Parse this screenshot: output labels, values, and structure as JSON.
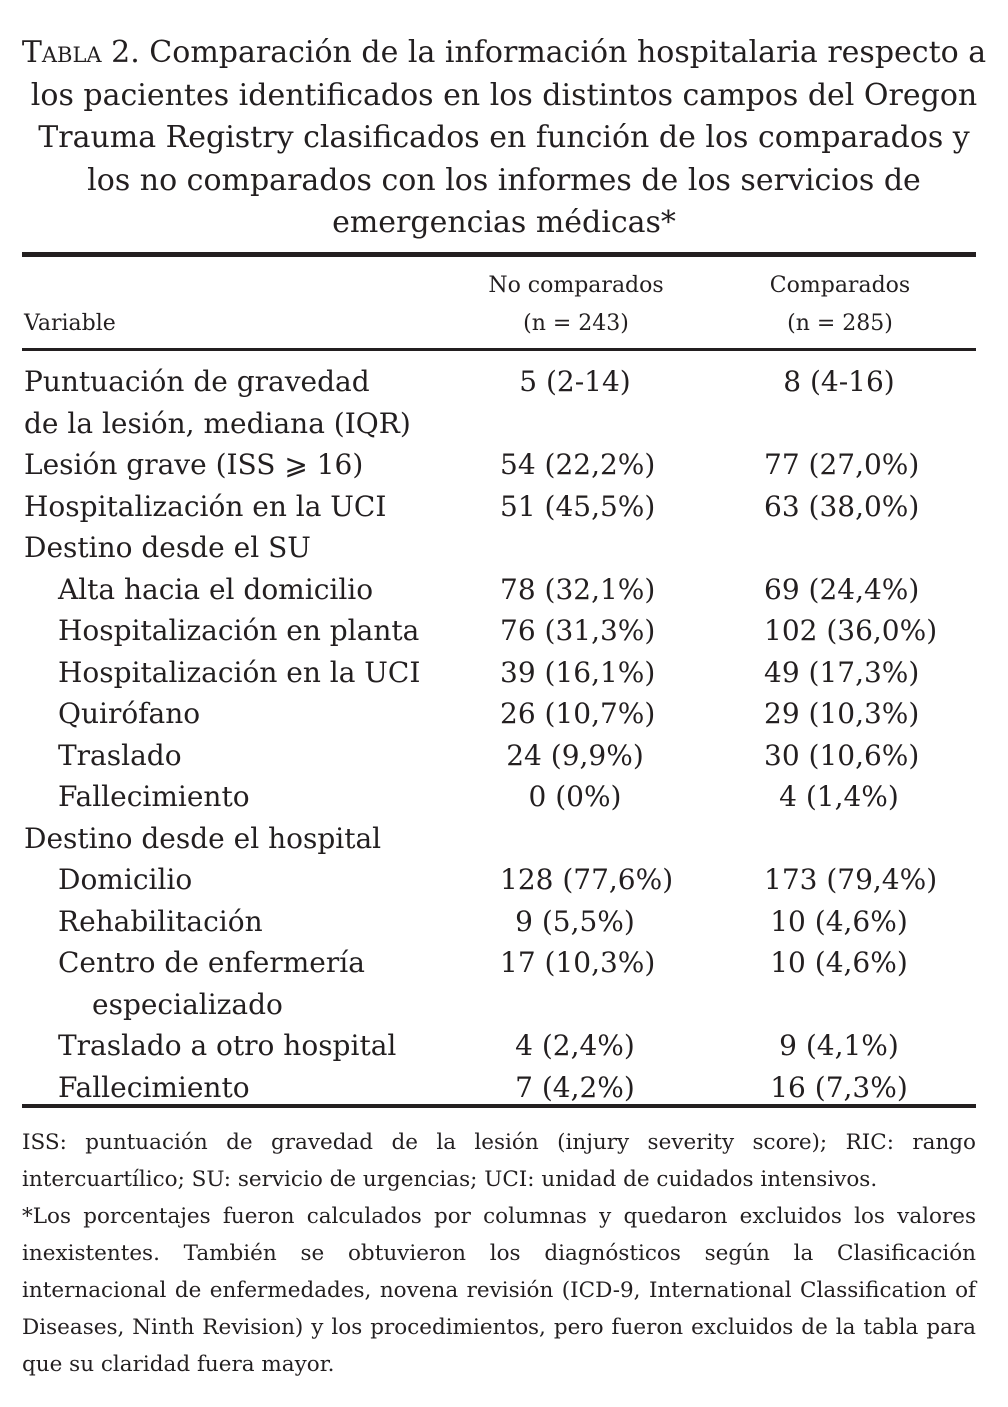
{
  "title": {
    "label": "Tabla 2.",
    "text": "Comparación de la información hospitalaria respecto a los pacientes identificados en los distintos campos del Oregon Trauma Registry clasificados en función de los comparados y los no comparados con los informes de los servicios de emergencias médicas*"
  },
  "header": {
    "variable": "Variable",
    "col1": "No comparados",
    "col1_n": "(n = 243)",
    "col2": "Comparados",
    "col2_n": "(n = 285)"
  },
  "rows": [
    {
      "label": "Puntuación de gravedad",
      "c1": "5 (2-14)",
      "c2": "8 (4-16)",
      "indent": 0
    },
    {
      "label": "de la lesión, mediana (IQR)",
      "c1": "",
      "c2": "",
      "indent": 0
    },
    {
      "label": "Lesión grave (ISS ⩾ 16)",
      "c1": "54 (22,2%)",
      "c2": "77 (27,0%)",
      "indent": 0
    },
    {
      "label": "Hospitalización en la UCI",
      "c1": "51 (45,5%)",
      "c2": "63 (38,0%)",
      "indent": 0
    },
    {
      "label": "Destino desde el SU",
      "c1": "",
      "c2": "",
      "indent": 0
    },
    {
      "label": "Alta hacia el domicilio",
      "c1": "78 (32,1%)",
      "c2": "69 (24,4%)",
      "indent": 1
    },
    {
      "label": "Hospitalización en planta",
      "c1": "76 (31,3%)",
      "c2": "102 (36,0%)",
      "indent": 1
    },
    {
      "label": "Hospitalización en la UCI",
      "c1": "39 (16,1%)",
      "c2": "49 (17,3%)",
      "indent": 1
    },
    {
      "label": "Quirófano",
      "c1": "26 (10,7%)",
      "c2": "29 (10,3%)",
      "indent": 1
    },
    {
      "label": "Traslado",
      "c1": "24 (9,9%)",
      "c2": "30 (10,6%)",
      "indent": 1
    },
    {
      "label": "Fallecimiento",
      "c1": "0 (0%)",
      "c2": "4 (1,4%)",
      "indent": 1
    },
    {
      "label": "Destino desde el hospital",
      "c1": "",
      "c2": "",
      "indent": 0
    },
    {
      "label": "Domicilio",
      "c1": "128 (77,6%)",
      "c2": "173 (79,4%)",
      "indent": 1
    },
    {
      "label": "Rehabilitación",
      "c1": "9 (5,5%)",
      "c2": "10 (4,6%)",
      "indent": 1
    },
    {
      "label": "Centro de enfermería",
      "c1": "17 (10,3%)",
      "c2": "10 (4,6%)",
      "indent": 1
    },
    {
      "label": "especializado",
      "c1": "",
      "c2": "",
      "indent": 2
    },
    {
      "label": "Traslado a otro hospital",
      "c1": "4 (2,4%)",
      "c2": "9 (4,1%)",
      "indent": 1
    },
    {
      "label": "Fallecimiento",
      "c1": "7 (4,2%)",
      "c2": "16 (7,3%)",
      "indent": 1
    }
  ],
  "footnotes": [
    "ISS: puntuación de gravedad de la lesión (injury severity score); RIC: rango intercuartílico; SU: servicio de urgencias; UCI: unidad de cuidados intensivos.",
    "*Los porcentajes fueron calculados por columnas y quedaron excluidos los valores inexistentes. También se obtuvieron los diagnósticos según la Clasificación internacional de enfermedades, novena revisión (ICD-9, International Classification of Diseases, Ninth Revision) y los procedimientos, pero fueron excluidos de la tabla para que su claridad fuera mayor."
  ]
}
